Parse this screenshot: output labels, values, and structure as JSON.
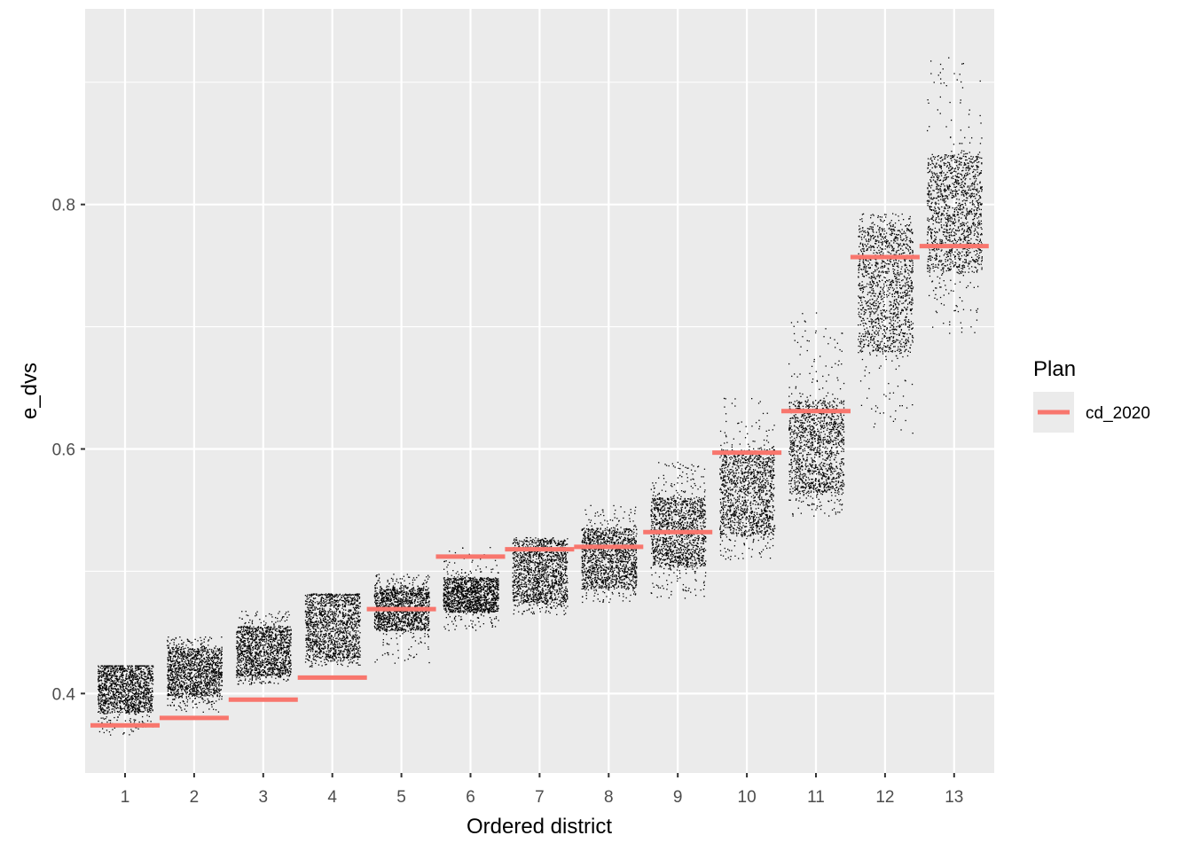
{
  "chart_data": {
    "type": "scatter",
    "title": "",
    "xlabel": "Ordered district",
    "ylabel": "e_dvs",
    "categories": [
      "1",
      "2",
      "3",
      "4",
      "5",
      "6",
      "7",
      "8",
      "9",
      "10",
      "11",
      "12",
      "13"
    ],
    "ylim": [
      0.335,
      0.96
    ],
    "y_ticks": [
      0.4,
      0.6,
      0.8
    ],
    "y_tick_labels": [
      "0.4",
      "0.6",
      "0.8"
    ],
    "grid": true,
    "legend": {
      "title": "Plan",
      "position": "right"
    },
    "colors": {
      "panel": "#ebebeb",
      "grid": "#ffffff",
      "points": "#000000",
      "plan": "#f8766d"
    },
    "series": [
      {
        "name": "cd_2020",
        "style": "horizontal-segment",
        "values": [
          0.374,
          0.38,
          0.395,
          0.413,
          0.469,
          0.512,
          0.518,
          0.52,
          0.532,
          0.597,
          0.631,
          0.757,
          0.766
        ]
      },
      {
        "style": "jitter-points",
        "distributions": [
          {
            "district": "1",
            "core": [
              0.385,
              0.423
            ],
            "range": [
              0.366,
              0.423
            ],
            "n": 1400
          },
          {
            "district": "2",
            "core": [
              0.398,
              0.437
            ],
            "range": [
              0.385,
              0.447
            ],
            "n": 1400
          },
          {
            "district": "3",
            "core": [
              0.415,
              0.455
            ],
            "range": [
              0.408,
              0.468
            ],
            "n": 1400
          },
          {
            "district": "4",
            "core": [
              0.43,
              0.481
            ],
            "range": [
              0.422,
              0.482
            ],
            "n": 1400
          },
          {
            "district": "5",
            "core": [
              0.452,
              0.487
            ],
            "range": [
              0.425,
              0.498
            ],
            "n": 1400
          },
          {
            "district": "6",
            "core": [
              0.467,
              0.495
            ],
            "range": [
              0.45,
              0.52
            ],
            "n": 1400
          },
          {
            "district": "7",
            "core": [
              0.475,
              0.525
            ],
            "range": [
              0.465,
              0.528
            ],
            "n": 1400
          },
          {
            "district": "8",
            "core": [
              0.487,
              0.535
            ],
            "range": [
              0.475,
              0.555
            ],
            "n": 1400
          },
          {
            "district": "9",
            "core": [
              0.505,
              0.56
            ],
            "range": [
              0.478,
              0.59
            ],
            "n": 1400
          },
          {
            "district": "10",
            "core": [
              0.53,
              0.6
            ],
            "range": [
              0.51,
              0.645
            ],
            "n": 1400
          },
          {
            "district": "11",
            "core": [
              0.565,
              0.64
            ],
            "range": [
              0.545,
              0.712
            ],
            "n": 1400
          },
          {
            "district": "12",
            "core": [
              0.68,
              0.78
            ],
            "range": [
              0.612,
              0.793
            ],
            "n": 1400
          },
          {
            "district": "13",
            "core": [
              0.745,
              0.84
            ],
            "range": [
              0.695,
              0.925
            ],
            "n": 1400
          }
        ]
      }
    ]
  }
}
